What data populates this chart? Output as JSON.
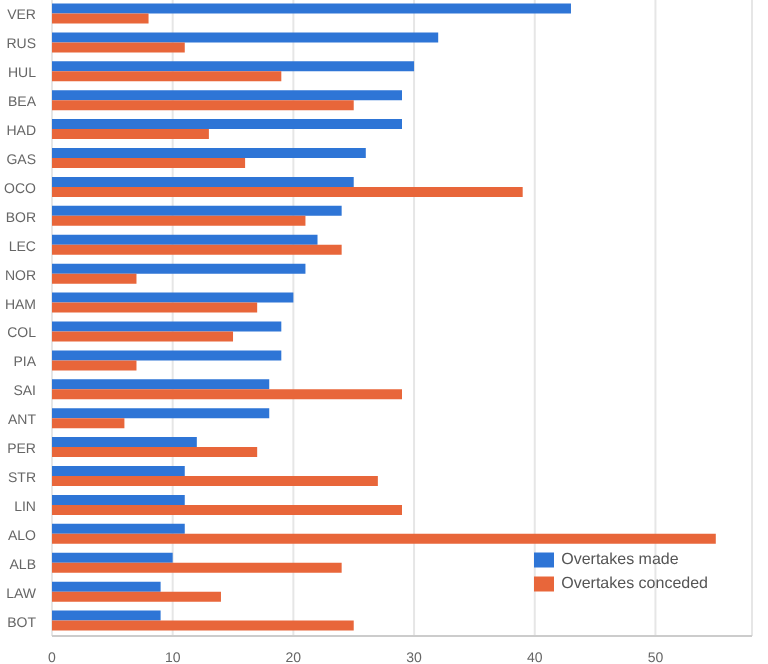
{
  "chart_data": {
    "type": "bar",
    "orientation": "horizontal",
    "categories": [
      "VER",
      "RUS",
      "HUL",
      "BEA",
      "HAD",
      "GAS",
      "OCO",
      "BOR",
      "LEC",
      "NOR",
      "HAM",
      "COL",
      "PIA",
      "SAI",
      "ANT",
      "PER",
      "STR",
      "LIN",
      "ALO",
      "ALB",
      "LAW",
      "BOT"
    ],
    "series": [
      {
        "name": "Overtakes made",
        "color": "#2e75d6",
        "values": [
          43,
          32,
          30,
          29,
          29,
          26,
          25,
          24,
          22,
          21,
          20,
          19,
          19,
          18,
          18,
          12,
          11,
          11,
          11,
          10,
          9,
          9
        ]
      },
      {
        "name": "Overtakes conceded",
        "color": "#e8663a",
        "values": [
          8,
          11,
          19,
          25,
          13,
          16,
          39,
          21,
          24,
          7,
          17,
          15,
          7,
          29,
          6,
          17,
          27,
          29,
          55,
          24,
          14,
          25
        ]
      }
    ],
    "xlim": [
      0,
      58
    ],
    "xticks": [
      0,
      10,
      20,
      30,
      40,
      50
    ],
    "grid": "x",
    "legend": "bottom right"
  }
}
